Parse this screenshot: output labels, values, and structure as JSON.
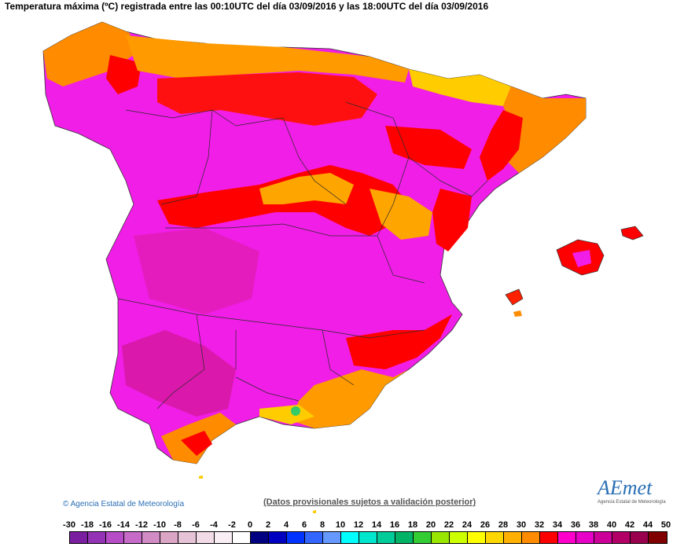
{
  "title": "Temperatura máxima (ºC) registrada entre las 00:10UTC del día 03/09/2016 y las 18:00UTC del día 03/09/2016",
  "credit": "Agencia Estatal de Meteorología",
  "disclaimer": "(Datos provisionales sujetos a validación posterior)",
  "logo": {
    "wordmark": "AEmet",
    "subtitle": "Agencia Estatal de Meteorología"
  },
  "legend": {
    "ticks": [
      "-30",
      "-18",
      "-16",
      "-14",
      "-12",
      "-10",
      "-8",
      "-6",
      "-4",
      "-2",
      "0",
      "2",
      "4",
      "6",
      "8",
      "10",
      "12",
      "14",
      "16",
      "18",
      "20",
      "22",
      "24",
      "26",
      "28",
      "30",
      "32",
      "34",
      "36",
      "38",
      "40",
      "42",
      "44",
      "50"
    ],
    "colors": [
      "#7a1fa0",
      "#9433b5",
      "#b64dc6",
      "#c66cc8",
      "#d18cc6",
      "#dba6c6",
      "#e6c3d6",
      "#f0dbe6",
      "#f8eef4",
      "#ffffff",
      "#000080",
      "#0000c0",
      "#0033ff",
      "#3366ff",
      "#6699ff",
      "#00ffff",
      "#00e6cc",
      "#00cc99",
      "#00b366",
      "#33cc33",
      "#99e600",
      "#ccff00",
      "#ffff00",
      "#ffd700",
      "#ffb000",
      "#ff8c00",
      "#ff0000",
      "#ff00cc",
      "#e600c8",
      "#cc0099",
      "#b30066",
      "#99004d",
      "#800000"
    ]
  }
}
